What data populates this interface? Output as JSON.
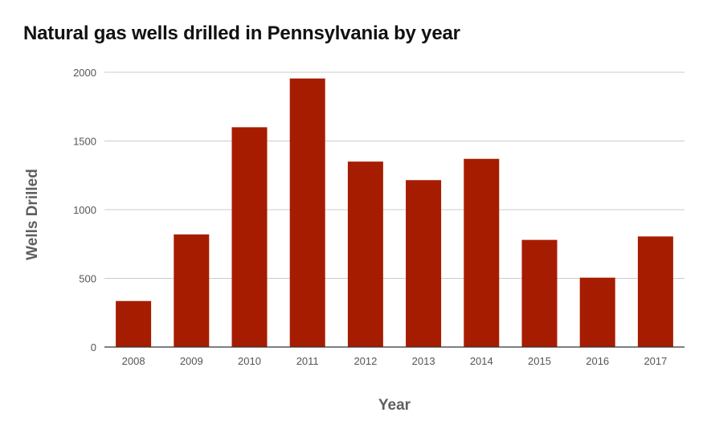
{
  "chart_data": {
    "type": "bar",
    "title": "Natural gas wells drilled in Pennsylvania by year",
    "xlabel": "Year",
    "ylabel": "Wells Drilled",
    "categories": [
      "2008",
      "2009",
      "2010",
      "2011",
      "2012",
      "2013",
      "2014",
      "2015",
      "2016",
      "2017"
    ],
    "values": [
      335,
      820,
      1600,
      1955,
      1350,
      1215,
      1370,
      780,
      505,
      805
    ],
    "ylim": [
      0,
      2000
    ],
    "yticks": [
      "0",
      "500",
      "1000",
      "1500",
      "2000"
    ],
    "grid": true,
    "legend": "none",
    "bar_color": "#a61c00"
  }
}
